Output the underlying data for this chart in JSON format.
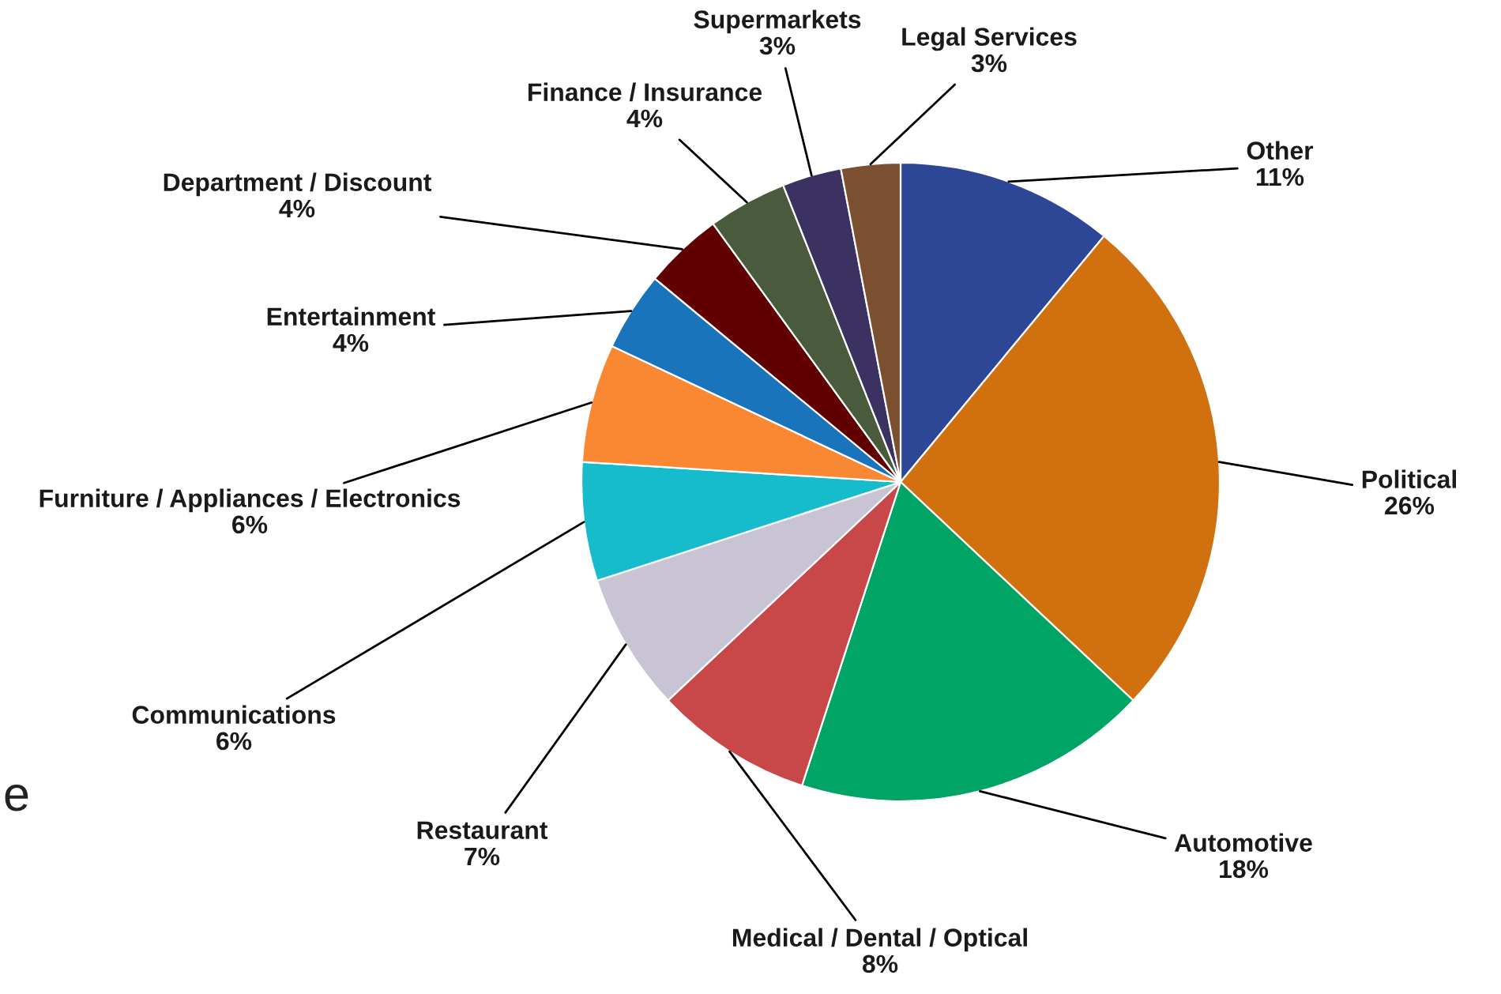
{
  "chart_data": {
    "type": "pie",
    "categories": [
      "Other",
      "Political",
      "Automotive",
      "Medical / Dental / Optical",
      "Restaurant",
      "Communications",
      "Furniture / Appliances / Electronics",
      "Entertainment",
      "Department / Discount",
      "Finance / Insurance",
      "Supermarkets",
      "Legal Services"
    ],
    "values": [
      11,
      26,
      18,
      8,
      7,
      6,
      6,
      4,
      4,
      4,
      3,
      3
    ],
    "colors": [
      "#2e4696",
      "#d0700f",
      "#00a464",
      "#c8484a",
      "#c8c4d4",
      "#16bccc",
      "#fa8732",
      "#1a74bc",
      "#600000",
      "#4a5a3c",
      "#3c3262",
      "#7a5030"
    ],
    "value_labels": [
      "11%",
      "26%",
      "18%",
      "8%",
      "7%",
      "6%",
      "6%",
      "4%",
      "4%",
      "4%",
      "3%",
      "3%"
    ],
    "annotations": [
      "e"
    ]
  }
}
